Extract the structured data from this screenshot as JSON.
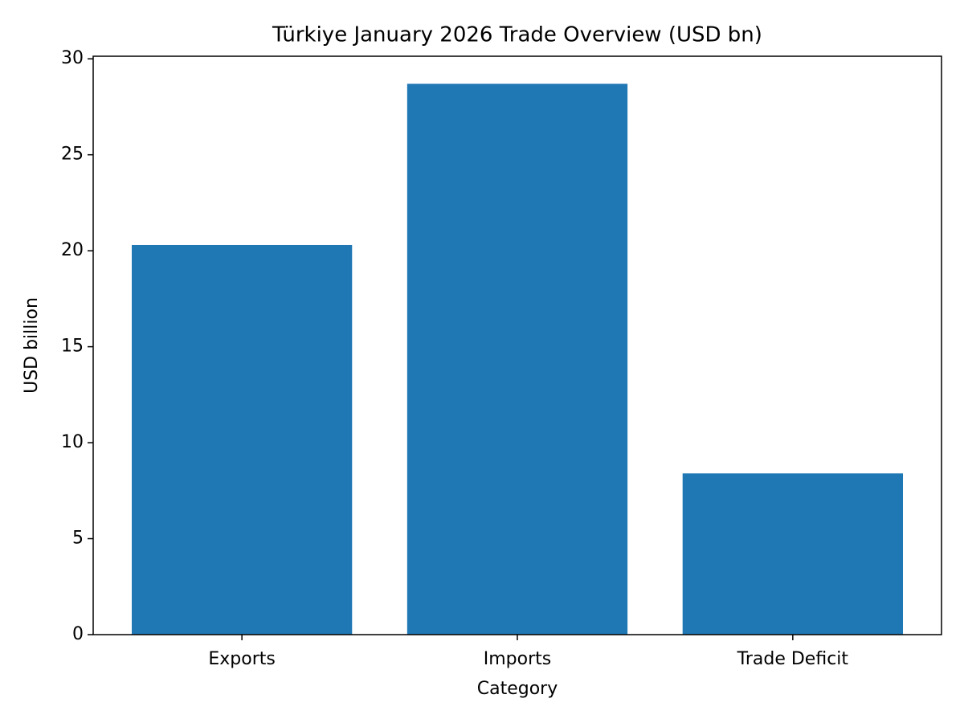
{
  "chart_data": {
    "type": "bar",
    "title": "Türkiye January 2026 Trade Overview (USD bn)",
    "x_label": "Category",
    "y_label": "USD billion",
    "categories": [
      "Exports",
      "Imports",
      "Trade Deficit"
    ],
    "values": [
      20.3,
      28.7,
      8.4
    ],
    "color": "#1f77b4",
    "ylim": [
      0,
      30.135
    ],
    "yticks": [
      0,
      5,
      10,
      15,
      20,
      25,
      30
    ],
    "grid": false
  }
}
